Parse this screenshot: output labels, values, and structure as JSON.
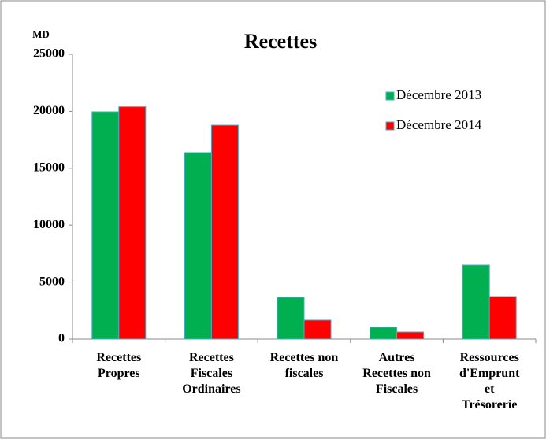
{
  "chart_data": {
    "type": "bar",
    "title": "Recettes",
    "y_label": "MD",
    "categories": [
      "Recettes\nPropres",
      "Recettes\nFiscales\nOrdinaires",
      "Recettes non\nfiscales",
      "Autres\nRecettes non\nFiscales",
      "Ressources\nd'Emprunt\net\nTrésorerie"
    ],
    "series": [
      {
        "name": "Décembre 2013",
        "color": "#00b050",
        "values": [
          19960,
          16370,
          3660,
          1040,
          6490
        ]
      },
      {
        "name": "Décembre 2014",
        "color": "#ff0000",
        "values": [
          20400,
          18780,
          1660,
          620,
          3730
        ]
      }
    ],
    "ylim": [
      0,
      25000
    ],
    "yticks": [
      0,
      5000,
      10000,
      15000,
      20000,
      25000
    ],
    "legend": "upper right"
  }
}
